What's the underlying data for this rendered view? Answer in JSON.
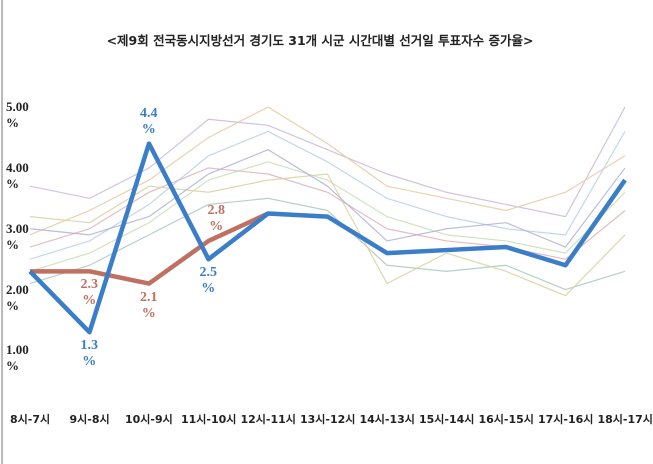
{
  "chart_data": {
    "type": "line",
    "title": "<제9회 전국동시지방선거 경기도 31개 시군 시간대별 선거일 투표자수 증가율>",
    "categories": [
      "8시-7시",
      "9시-8시",
      "10시-9시",
      "11시-10시",
      "12시-11시",
      "13시-12시",
      "14시-13시",
      "15시-14시",
      "16시-15시",
      "17시-16시",
      "18시-17시"
    ],
    "ylim": [
      0.35,
      5.1
    ],
    "yticks": [
      {
        "value": 1,
        "label": "1.00\n%"
      },
      {
        "value": 2,
        "label": "2.00\n%"
      },
      {
        "value": 3,
        "label": "3.00\n%"
      },
      {
        "value": 4,
        "label": "4.00\n%"
      },
      {
        "value": 5,
        "label": "5.00\n%"
      }
    ],
    "series": [
      {
        "color": "#c9b8d8",
        "values": [
          3.7,
          3.5,
          4.0,
          4.8,
          4.7,
          4.3,
          3.9,
          3.6,
          3.4,
          3.2,
          5.0
        ]
      },
      {
        "color": "#e8c9a0",
        "values": [
          2.9,
          3.3,
          3.8,
          4.5,
          5.0,
          4.4,
          3.7,
          3.5,
          3.3,
          3.6,
          4.2
        ]
      },
      {
        "color": "#b8d0e8",
        "values": [
          2.5,
          2.8,
          3.4,
          4.2,
          4.6,
          4.1,
          3.5,
          3.2,
          3.0,
          2.9,
          4.6
        ]
      },
      {
        "color": "#c8dfb0",
        "values": [
          2.3,
          2.6,
          3.1,
          3.8,
          4.1,
          3.8,
          3.2,
          2.9,
          2.8,
          2.6,
          3.6
        ]
      },
      {
        "color": "#e0b0b8",
        "values": [
          2.7,
          3.0,
          3.6,
          4.0,
          3.9,
          3.6,
          3.0,
          2.8,
          2.7,
          2.5,
          3.3
        ]
      },
      {
        "color": "#a8c8c0",
        "values": [
          2.1,
          2.4,
          2.9,
          3.4,
          3.5,
          3.3,
          2.4,
          2.3,
          2.4,
          2.0,
          2.3
        ]
      },
      {
        "color": "#d8d0a0",
        "values": [
          3.2,
          3.1,
          3.7,
          3.6,
          3.8,
          3.9,
          2.1,
          2.6,
          2.3,
          1.9,
          2.9
        ]
      },
      {
        "color": "#b0b0d8",
        "values": [
          3.0,
          2.9,
          3.2,
          3.9,
          4.3,
          3.7,
          2.8,
          3.0,
          3.1,
          2.7,
          4.0
        ]
      },
      {
        "color": "#c07060",
        "values": [
          2.3,
          2.3,
          2.1,
          2.8,
          3.25,
          null,
          null,
          null,
          null,
          null,
          null
        ],
        "value_labels": [
          null,
          "2.3\n%",
          "2.1\n%",
          "2.8\n%",
          null,
          null,
          null,
          null,
          null,
          null,
          null
        ],
        "highlight": true
      },
      {
        "color": "#3a7dc9",
        "values": [
          2.3,
          1.3,
          4.4,
          2.5,
          3.25,
          3.2,
          2.6,
          2.65,
          2.7,
          2.4,
          3.8
        ],
        "value_labels": [
          null,
          "1.3\n%",
          "4.4\n%",
          "2.5\n%",
          null,
          null,
          null,
          null,
          null,
          null,
          null
        ],
        "highlight": true
      }
    ]
  }
}
